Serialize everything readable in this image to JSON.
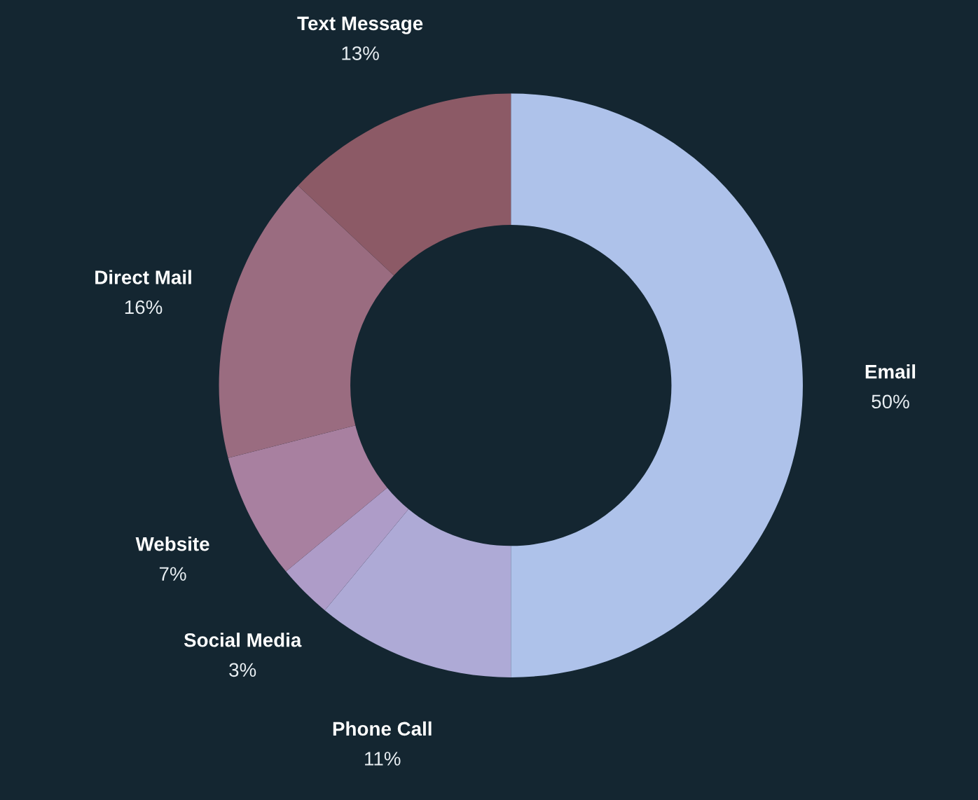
{
  "chart_data": {
    "type": "donut",
    "categories": [
      "Email",
      "Phone Call",
      "Social Media",
      "Website",
      "Direct Mail",
      "Text Message"
    ],
    "values": [
      50,
      11,
      3,
      7,
      16,
      13
    ],
    "value_labels": [
      "50%",
      "11%",
      "3%",
      "7%",
      "16%",
      "13%"
    ],
    "colors": [
      "#aec2ea",
      "#aeaad6",
      "#ae9cc8",
      "#a880a0",
      "#9a6c80",
      "#8c5a66"
    ],
    "legend": false
  }
}
